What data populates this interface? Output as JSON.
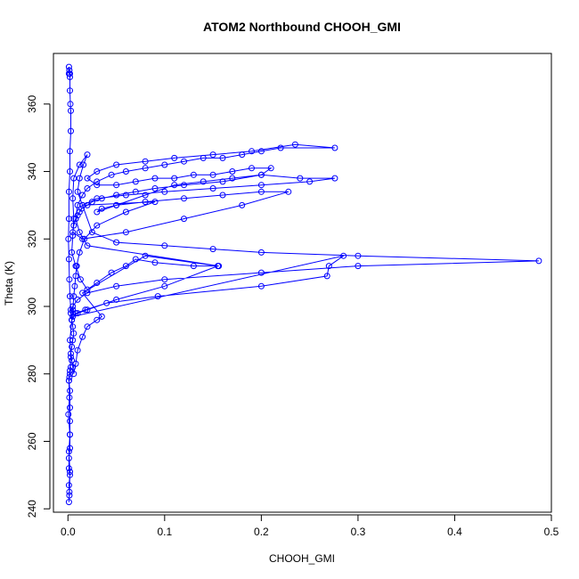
{
  "chart_data": {
    "type": "scatter",
    "title": "ATOM2 Northbound CHOOH_GMI",
    "xlabel": "CHOOH_GMI",
    "ylabel": "Theta (K)",
    "xlim": [
      -0.015,
      0.5
    ],
    "ylim": [
      239,
      375
    ],
    "x_ticks": [
      0.0,
      0.1,
      0.2,
      0.3,
      0.4,
      0.5
    ],
    "x_tick_labels": [
      "0.0",
      "0.1",
      "0.2",
      "0.3",
      "0.4",
      "0.5"
    ],
    "y_ticks": [
      240,
      260,
      280,
      300,
      320,
      340,
      360
    ],
    "y_tick_labels": [
      "240",
      "260",
      "280",
      "300",
      "320",
      "340",
      "360"
    ],
    "grid": false,
    "legend": "none",
    "marker": "open-circle",
    "connect_points": true,
    "series": [
      {
        "color": "#0000ff",
        "x": [
          0.001,
          0.001,
          0.0015,
          0.002,
          0.002,
          0.002,
          0.0025,
          0.003,
          0.003,
          0.002,
          0.002,
          0.001,
          0.001,
          0.0005,
          0.001,
          0.0015,
          0.002,
          0.003,
          0.004,
          0.005,
          0.006,
          0.007,
          0.008,
          0.009,
          0.012,
          0.017,
          0.03,
          0.06,
          0.09,
          0.015,
          0.01,
          0.012,
          0.016,
          0.02,
          0.012,
          0.006,
          0.005,
          0.006,
          0.005,
          0.004,
          0.008,
          0.013,
          0.02,
          0.03,
          0.045,
          0.06,
          0.07,
          0.09,
          0.13,
          0.156,
          0.02,
          0.012,
          0.008,
          0.01,
          0.015,
          0.02,
          0.03,
          0.045,
          0.06,
          0.08,
          0.1,
          0.12,
          0.14,
          0.16,
          0.18,
          0.2,
          0.22,
          0.276,
          0.235,
          0.19,
          0.15,
          0.11,
          0.08,
          0.05,
          0.03,
          0.02,
          0.03,
          0.05,
          0.07,
          0.09,
          0.11,
          0.13,
          0.15,
          0.17,
          0.19,
          0.21,
          0.2,
          0.16,
          0.12,
          0.09,
          0.07,
          0.05,
          0.035,
          0.025,
          0.02,
          0.014,
          0.012,
          0.01,
          0.008,
          0.006,
          0.005,
          0.015,
          0.06,
          0.12,
          0.18,
          0.228,
          0.2,
          0.16,
          0.12,
          0.08,
          0.05,
          0.035,
          0.03,
          0.05,
          0.08,
          0.11,
          0.14,
          0.17,
          0.2,
          0.24,
          0.276,
          0.25,
          0.2,
          0.15,
          0.1,
          0.06,
          0.03,
          0.015,
          0.025,
          0.05,
          0.1,
          0.15,
          0.2,
          0.3,
          0.487,
          0.3,
          0.2,
          0.1,
          0.05,
          0.02,
          0.01,
          0.005,
          0.003,
          0.004,
          0.005,
          0.006,
          0.005,
          0.004,
          0.003,
          0.004,
          0.005,
          0.006,
          0.008,
          0.01,
          0.015,
          0.02,
          0.03,
          0.035,
          0.015,
          0.08,
          0.155,
          0.1,
          0.05,
          0.02,
          0.01,
          0.005,
          0.285,
          0.27,
          0.268,
          0.2,
          0.093,
          0.04,
          0.018,
          0.008,
          0.004,
          0.002,
          0.003,
          0.002,
          0.001,
          0.002,
          0.002,
          0.002,
          0.002,
          0.002,
          0.001,
          0.001,
          0.002,
          0.001,
          0.0015,
          0.001,
          0.0015,
          0.002,
          0.001,
          0.002,
          0.0005,
          0.0015,
          0.001,
          0.0015,
          0.002,
          0.003
        ],
        "y": [
          369,
          371,
          370,
          369,
          368,
          364,
          360,
          358,
          352,
          346,
          340,
          334,
          326,
          320,
          314,
          308,
          303,
          299,
          296,
          299,
          303,
          306,
          309,
          312,
          316,
          320,
          324,
          328,
          331,
          330,
          334,
          338,
          342,
          345,
          342,
          338,
          332,
          326,
          321,
          316,
          312,
          308,
          305,
          307,
          310,
          312,
          314,
          313,
          312,
          312,
          318,
          322,
          326,
          330,
          333,
          335,
          337,
          339,
          340,
          341,
          342,
          343,
          344,
          344,
          345,
          346,
          347,
          347,
          348,
          346,
          345,
          344,
          343,
          342,
          340,
          338,
          336,
          336,
          337,
          338,
          338,
          339,
          339,
          340,
          341,
          341,
          339,
          337,
          336,
          335,
          334,
          333,
          332,
          331,
          330,
          329,
          328,
          327,
          326,
          324,
          322,
          320,
          322,
          326,
          330,
          334,
          334,
          333,
          332,
          331,
          330,
          329,
          328,
          330,
          333,
          336,
          337,
          338,
          339,
          338,
          338,
          337,
          336,
          335,
          334,
          333,
          332,
          330,
          322,
          319,
          318,
          317,
          316,
          315,
          313.5,
          312,
          310,
          308,
          306,
          304,
          302,
          300,
          298,
          296,
          294,
          292,
          290,
          288,
          286,
          284,
          282,
          280,
          283,
          287,
          291,
          294,
          296,
          297,
          304,
          315,
          312,
          306,
          302,
          299,
          298,
          297,
          315,
          312,
          309,
          306,
          303,
          301,
          299,
          298,
          296,
          290,
          285,
          280,
          278,
          275,
          270,
          266,
          262,
          258,
          255,
          252,
          250,
          247,
          245,
          242,
          244,
          251,
          257,
          262,
          268,
          273,
          278,
          279,
          281,
          282
        ]
      }
    ]
  }
}
